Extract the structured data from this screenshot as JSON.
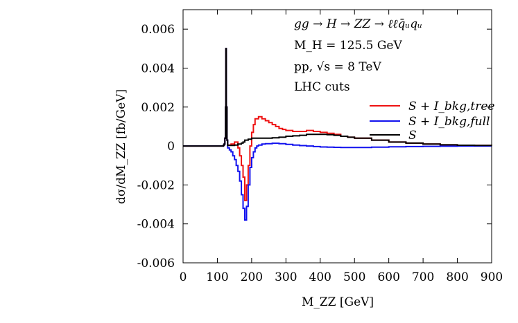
{
  "chart_data": {
    "type": "line",
    "step": true,
    "title": "",
    "xlabel": "M_ZZ [GeV]",
    "ylabel": "dσ/dM_ZZ [fb/GeV]",
    "xlim": [
      0,
      900
    ],
    "ylim": [
      -0.006,
      0.007
    ],
    "xticks": [
      0,
      100,
      200,
      300,
      400,
      500,
      600,
      700,
      800,
      900
    ],
    "xtick_labels": [
      "0",
      "100",
      "200",
      "300",
      "400",
      "500",
      "600",
      "700",
      "800",
      "900"
    ],
    "yticks": [
      -0.006,
      -0.004,
      -0.002,
      0,
      0.002,
      0.004,
      0.006
    ],
    "ytick_labels": [
      "-0.006",
      "-0.004",
      "-0.002",
      "0",
      "0.002",
      "0.004",
      "0.006"
    ],
    "annotations": [
      "gg → H → ZZ → ℓℓq̄ᵤqᵤ",
      "M_H = 125.5 GeV",
      "pp, √s = 8 TeV",
      "LHC cuts"
    ],
    "legend_position": "right",
    "series": [
      {
        "name": "S + I_bkg,tree",
        "color": "#ee1111",
        "x": [
          0,
          110,
          118,
          120,
          122,
          124,
          125,
          126,
          128,
          130,
          140,
          150,
          160,
          165,
          170,
          175,
          180,
          185,
          190,
          195,
          200,
          205,
          210,
          220,
          230,
          240,
          250,
          260,
          270,
          280,
          290,
          300,
          320,
          340,
          360,
          380,
          400,
          420,
          440,
          460,
          480,
          500,
          550,
          600,
          650,
          700,
          750,
          800,
          850,
          900
        ],
        "y": [
          0,
          0,
          5e-05,
          0.0001,
          0.0004,
          0.002,
          0.005,
          0.002,
          0.0003,
          5e-05,
          0.0001,
          0.0002,
          -0.0001,
          -0.0005,
          -0.001,
          -0.0016,
          -0.0028,
          -0.002,
          -0.001,
          0.0,
          0.0007,
          0.0011,
          0.0014,
          0.0015,
          0.0014,
          0.0013,
          0.0012,
          0.0011,
          0.001,
          0.0009,
          0.00085,
          0.0008,
          0.00075,
          0.00075,
          0.0008,
          0.00075,
          0.0007,
          0.00065,
          0.0006,
          0.0005,
          0.00045,
          0.0004,
          0.0003,
          0.0002,
          0.00015,
          0.0001,
          6e-05,
          4e-05,
          3e-05,
          2e-05
        ]
      },
      {
        "name": "S + I_bkg,full",
        "color": "#1111ee",
        "x": [
          0,
          110,
          118,
          120,
          122,
          124,
          125,
          126,
          128,
          130,
          135,
          140,
          145,
          150,
          155,
          160,
          165,
          170,
          175,
          180,
          185,
          190,
          195,
          200,
          205,
          210,
          215,
          220,
          230,
          240,
          260,
          280,
          300,
          320,
          340,
          360,
          380,
          400,
          420,
          440,
          460,
          480,
          500,
          550,
          600,
          650,
          700,
          750,
          800,
          850,
          900
        ],
        "y": [
          0,
          0,
          5e-05,
          0.0001,
          0.0004,
          0.002,
          0.005,
          0.002,
          0.0003,
          -0.0001,
          -0.0002,
          -0.0003,
          -0.0005,
          -0.0007,
          -0.001,
          -0.0013,
          -0.0018,
          -0.0025,
          -0.0032,
          -0.0038,
          -0.0031,
          -0.002,
          -0.0011,
          -0.0006,
          -0.0003,
          -0.0001,
          0.0,
          5e-05,
          0.0001,
          0.00012,
          0.00014,
          0.00012,
          8e-05,
          5e-05,
          2e-05,
          0.0,
          -3e-05,
          -5e-05,
          -6e-05,
          -7e-05,
          -8e-05,
          -8e-05,
          -8e-05,
          -6e-05,
          -4e-05,
          -3e-05,
          -2e-05,
          -1e-05,
          0.0,
          0.0,
          0.0
        ]
      },
      {
        "name": "S",
        "color": "#000000",
        "x": [
          0,
          110,
          118,
          120,
          122,
          124,
          125,
          126,
          128,
          130,
          150,
          160,
          170,
          175,
          180,
          190,
          200,
          210,
          220,
          240,
          260,
          280,
          300,
          320,
          340,
          360,
          380,
          400,
          420,
          440,
          460,
          480,
          500,
          550,
          600,
          650,
          700,
          750,
          800,
          850,
          900
        ],
        "y": [
          0,
          0,
          5e-05,
          0.0001,
          0.0004,
          0.002,
          0.005,
          0.002,
          0.0003,
          3e-05,
          5e-05,
          0.0001,
          0.00015,
          0.0002,
          0.0003,
          0.00035,
          0.0004,
          0.0004,
          0.0004,
          0.0004,
          0.00042,
          0.00045,
          0.0005,
          0.00052,
          0.00055,
          0.0006,
          0.0006,
          0.0006,
          0.00058,
          0.00055,
          0.0005,
          0.00045,
          0.0004,
          0.0003,
          0.0002,
          0.00015,
          0.0001,
          6e-05,
          4e-05,
          3e-05,
          2e-05
        ]
      }
    ]
  }
}
